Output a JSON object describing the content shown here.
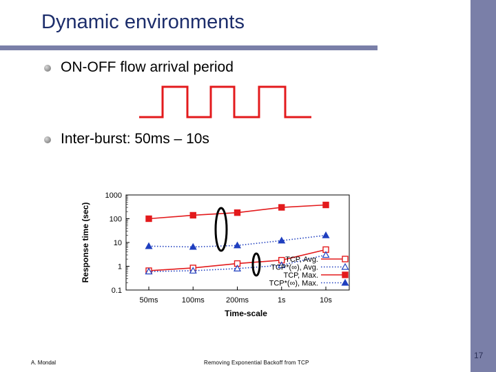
{
  "slide": {
    "title": "Dynamic environments",
    "bullets": [
      "ON-OFF flow arrival period",
      "Inter-burst: 50ms – 10s"
    ],
    "footer_left": "A. Mondal",
    "footer_center": "Removing Exponential Backoff from TCP",
    "page_number": "17",
    "accent_color": "#7a7fa8",
    "title_color": "#1c2d6b",
    "square_wave_color": "#e31a1c"
  },
  "chart_data": {
    "type": "line",
    "xlabel": "Time-scale",
    "ylabel": "Response time (sec)",
    "categories": [
      "50ms",
      "100ms",
      "200ms",
      "1s",
      "10s"
    ],
    "y_scale": "log",
    "ylim": [
      0.1,
      1000
    ],
    "yticks": [
      "0.1",
      "1",
      "10",
      "100",
      "1000"
    ],
    "legend_position": "bottom-right",
    "series": [
      {
        "name": "TCP, Avg.",
        "color": "#e31a1c",
        "line": "solid",
        "marker": "square-open",
        "values": [
          0.65,
          0.85,
          1.3,
          1.8,
          5
        ]
      },
      {
        "name": "TCP*(∞), Avg.",
        "color": "#1f3fbf",
        "line": "dotted",
        "marker": "triangle-open",
        "values": [
          0.6,
          0.65,
          0.8,
          1.1,
          3
        ]
      },
      {
        "name": "TCP, Max.",
        "color": "#e31a1c",
        "line": "solid",
        "marker": "square-filled",
        "values": [
          100,
          140,
          180,
          300,
          380
        ]
      },
      {
        "name": "TCP*(∞), Max.",
        "color": "#1f3fbf",
        "line": "dotted",
        "marker": "triangle-filled",
        "values": [
          7,
          6.5,
          7.5,
          12,
          20
        ]
      }
    ]
  }
}
